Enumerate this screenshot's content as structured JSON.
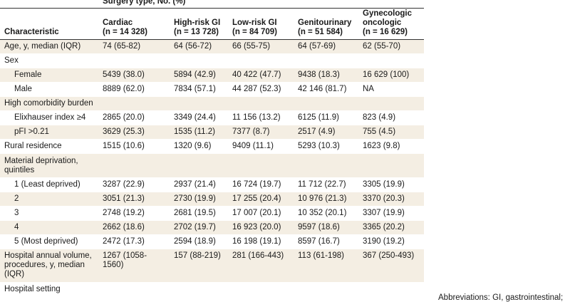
{
  "group_header": "Surgery type, No. (%)",
  "columns": [
    {
      "name": "Characteristic",
      "n": ""
    },
    {
      "name": "Cardiac",
      "n": "(n = 14 328)"
    },
    {
      "name": "High-risk GI",
      "n": "(n = 13 728)"
    },
    {
      "name": "Low-risk GI",
      "n": "(n = 84 709)"
    },
    {
      "name": "Genitourinary",
      "n": "(n = 51 584)"
    },
    {
      "name": "Gynecologic oncologic",
      "n": "(n = 16 629)"
    }
  ],
  "rows": [
    {
      "label": "Age, y, median (IQR)",
      "values": [
        "74 (65-82)",
        "64 (56-72)",
        "66 (55-75)",
        "64 (57-69)",
        "62 (55-70)"
      ]
    },
    {
      "label": "Sex",
      "values": [
        "",
        "",
        "",
        "",
        ""
      ]
    },
    {
      "label": "Female",
      "values": [
        "5439 (38.0)",
        "5894 (42.9)",
        "40 422 (47.7)",
        "9438 (18.3)",
        "16 629 (100)"
      ]
    },
    {
      "label": "Male",
      "values": [
        "8889 (62.0)",
        "7834 (57.1)",
        "44 287 (52.3)",
        "42 146 (81.7)",
        "NA"
      ]
    },
    {
      "label": "High comorbidity burden",
      "values": [
        "",
        "",
        "",
        "",
        ""
      ]
    },
    {
      "label": "Elixhauser index ≥4",
      "values": [
        "2865 (20.0)",
        "3349 (24.4)",
        "11 156 (13.2)",
        "6125 (11.9)",
        "823 (4.9)"
      ]
    },
    {
      "label": "pFI >0.21",
      "values": [
        "3629 (25.3)",
        "1535 (11.2)",
        "7377 (8.7)",
        "2517 (4.9)",
        "755 (4.5)"
      ]
    },
    {
      "label": "Rural residence",
      "values": [
        "1515 (10.6)",
        "1320 (9.6)",
        "9409 (11.1)",
        "5293 (10.3)",
        "1623 (9.8)"
      ]
    },
    {
      "label": "Material deprivation, quintiles",
      "values": [
        "",
        "",
        "",
        "",
        ""
      ]
    },
    {
      "label": "1 (Least deprived)",
      "values": [
        "3287 (22.9)",
        "2937 (21.4)",
        "16 724 (19.7)",
        "11 712 (22.7)",
        "3305 (19.9)"
      ]
    },
    {
      "label": "2",
      "values": [
        "3051 (21.3)",
        "2730 (19.9)",
        "17 255 (20.4)",
        "10 976 (21.3)",
        "3370 (20.3)"
      ]
    },
    {
      "label": "3",
      "values": [
        "2748 (19.2)",
        "2681 (19.5)",
        "17 007 (20.1)",
        "10 352 (20.1)",
        "3307 (19.9)"
      ]
    },
    {
      "label": "4",
      "values": [
        "2662 (18.6)",
        "2702 (19.7)",
        "16 923 (20.0)",
        "9597 (18.6)",
        "3365 (20.2)"
      ]
    },
    {
      "label": "5 (Most deprived)",
      "values": [
        "2472 (17.3)",
        "2594 (18.9)",
        "16 198 (19.1)",
        "8597 (16.7)",
        "3190 (19.2)"
      ]
    },
    {
      "label": "Hospital annual volume, procedures, y, median (IQR)",
      "values": [
        "1267 (1058-1560)",
        "157 (88-219)",
        "281 (166-443)",
        "113 (61-198)",
        "367 (250-493)"
      ]
    },
    {
      "label": "Hospital setting",
      "values": [
        "",
        "",
        "",
        "",
        ""
      ]
    }
  ],
  "footnote_fragment": "Abbreviations: GI, gastrointestinal;"
}
